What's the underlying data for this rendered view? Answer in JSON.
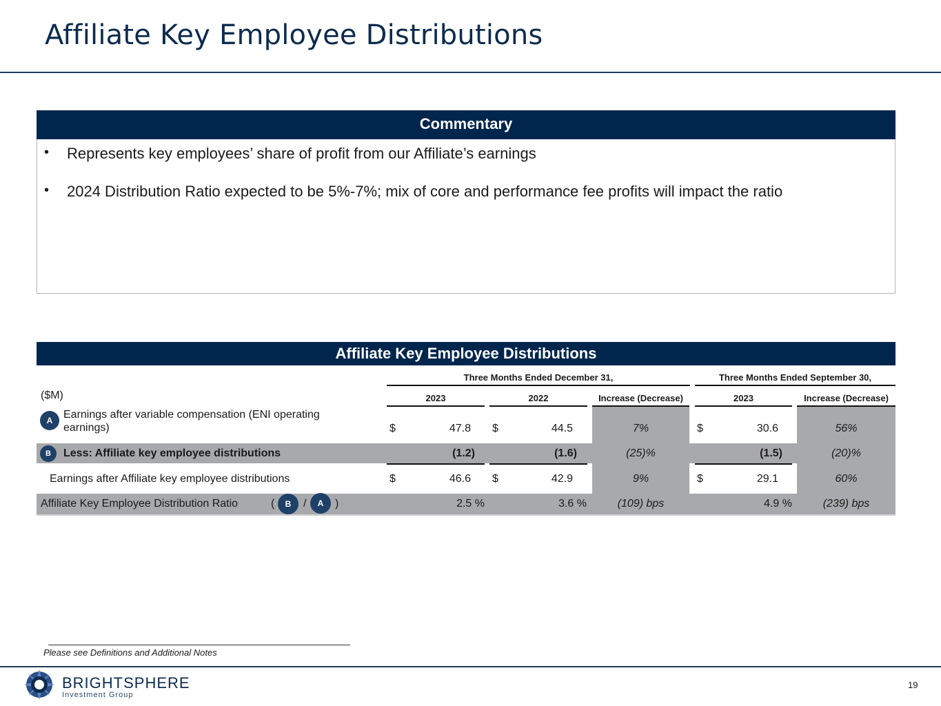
{
  "title": "Affiliate Key Employee Distributions",
  "commentary": {
    "heading": "Commentary",
    "bullets": [
      "Represents key employees’ share of profit from our Affiliate’s earnings",
      "2024 Distribution Ratio expected to be 5%-7%; mix of core and performance fee profits will impact the ratio"
    ]
  },
  "table": {
    "heading": "Affiliate Key Employee Distributions",
    "unit_label": "($M)",
    "group1": "Three Months Ended December 31,",
    "group2": "Three Months Ended September 30,",
    "columns": [
      "2023",
      "2022",
      "Increase (Decrease)",
      "2023",
      "Increase (Decrease)"
    ],
    "rows": [
      {
        "marker": "A",
        "label": "Earnings after variable compensation (ENI operating earnings)",
        "label_line1": "Earnings after variable compensation (ENI operating",
        "label_line2": "earnings)",
        "c1": "47.8",
        "c2": "44.5",
        "c3": "7%",
        "c4": "30.6",
        "c5": "56%",
        "dollar": "$"
      },
      {
        "marker": "B",
        "label": "Less: Affiliate key employee distributions",
        "c1": "(1.2)",
        "c2": "(1.6)",
        "c3": "(25)%",
        "c4": "(1.5)",
        "c5": "(20)%"
      },
      {
        "label": "Earnings after Affiliate key employee distributions",
        "c1": "46.6",
        "c2": "42.9",
        "c3": "9%",
        "c4": "29.1",
        "c5": "60%",
        "dollar": "$"
      },
      {
        "label": "Affiliate Key Employee Distribution Ratio",
        "formula": {
          "open": "(",
          "b": "B",
          "slash": "/",
          "a": "A",
          "close": ")"
        },
        "c1": "2.5 %",
        "c2": "3.6 %",
        "c3": "(109) bps",
        "c4": "4.9 %",
        "c5": "(239) bps"
      }
    ]
  },
  "footnote": "Please see Definitions and Additional Notes",
  "logo": {
    "name": "BRIGHTSPHERE",
    "sub": "Investment Group"
  },
  "page_number": "19",
  "colors": {
    "navy": "#00264d",
    "grey_highlight": "#a7a9ac",
    "marker": "#1f4168"
  }
}
